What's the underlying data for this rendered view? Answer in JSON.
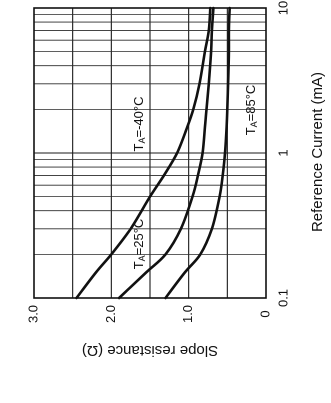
{
  "chart_data": {
    "type": "line",
    "orientation": "rotated-90-clockwise",
    "ylabel": "Slope resistance  (Ω)",
    "xlabel": "Reference Current (mA)",
    "x_scale": "log",
    "xlim": [
      0.1,
      10
    ],
    "ylim": [
      0,
      3.0
    ],
    "x_ticks": [
      {
        "value": 0.1,
        "label": "0.1"
      },
      {
        "value": 1,
        "label": "1"
      },
      {
        "value": 10,
        "label": "10"
      }
    ],
    "y_ticks": [
      {
        "value": 0,
        "label": "0"
      },
      {
        "value": 1.0,
        "label": "1.0"
      },
      {
        "value": 2.0,
        "label": "2.0"
      },
      {
        "value": 3.0,
        "label": "3.0"
      }
    ],
    "grid": true,
    "series": [
      {
        "name": "TA=-40°C",
        "label_main": "T",
        "label_sub": "A",
        "label_rest": "=-40°C",
        "x": [
          0.1,
          0.15,
          0.2,
          0.3,
          0.5,
          0.7,
          1,
          1.5,
          2,
          3,
          5,
          7,
          10
        ],
        "y": [
          2.45,
          2.2,
          2.0,
          1.75,
          1.5,
          1.32,
          1.15,
          1.02,
          0.94,
          0.86,
          0.79,
          0.74,
          0.72
        ]
      },
      {
        "name": "TA=25°C",
        "label_main": "T",
        "label_sub": "A",
        "label_rest": "=25°C",
        "x": [
          0.1,
          0.15,
          0.2,
          0.3,
          0.5,
          0.7,
          1,
          1.5,
          2,
          3,
          5,
          7,
          10
        ],
        "y": [
          1.9,
          1.55,
          1.3,
          1.1,
          0.95,
          0.88,
          0.82,
          0.79,
          0.77,
          0.74,
          0.71,
          0.7,
          0.68
        ]
      },
      {
        "name": "TA=85°C",
        "label_main": "T",
        "label_sub": "A",
        "label_rest": "=85°C",
        "x": [
          0.1,
          0.15,
          0.2,
          0.3,
          0.5,
          0.7,
          1,
          1.5,
          2,
          3,
          5,
          7,
          10
        ],
        "y": [
          1.3,
          1.05,
          0.85,
          0.7,
          0.6,
          0.56,
          0.53,
          0.51,
          0.5,
          0.49,
          0.48,
          0.48,
          0.47
        ]
      }
    ]
  }
}
